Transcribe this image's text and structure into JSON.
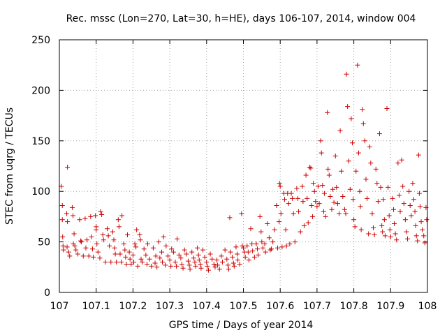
{
  "chart_data": {
    "type": "scatter",
    "title": "Rec. mssc (Lon=270, Lat=30, h=HE), days 106-107, 2014, window 004",
    "xlabel": "GPS time / Days of year 2014",
    "ylabel": "STEC from uqrg / TECUs",
    "xlim": [
      107,
      108
    ],
    "ylim": [
      0,
      250
    ],
    "x_ticks": [
      "107",
      "107.1",
      "107.2",
      "107.3",
      "107.4",
      "107.5",
      "107.6",
      "107.7",
      "107.8",
      "107.9",
      "108"
    ],
    "y_ticks": [
      "0",
      "50",
      "100",
      "150",
      "200",
      "250"
    ],
    "grid": true,
    "marker": "+",
    "color": "#cc0000",
    "points": [
      [
        107.005,
        105
      ],
      [
        107.008,
        86
      ],
      [
        107.008,
        72
      ],
      [
        107.009,
        55
      ],
      [
        107.01,
        46
      ],
      [
        107.011,
        42
      ],
      [
        107.022,
        124
      ],
      [
        107.02,
        78
      ],
      [
        107.022,
        70
      ],
      [
        107.021,
        45
      ],
      [
        107.025,
        40
      ],
      [
        107.028,
        36
      ],
      [
        107.035,
        84
      ],
      [
        107.037,
        76
      ],
      [
        107.04,
        58
      ],
      [
        107.038,
        48
      ],
      [
        107.042,
        46
      ],
      [
        107.045,
        42
      ],
      [
        107.05,
        38
      ],
      [
        107.055,
        72
      ],
      [
        107.058,
        51
      ],
      [
        107.06,
        50
      ],
      [
        107.065,
        36
      ],
      [
        107.07,
        73
      ],
      [
        107.072,
        44
      ],
      [
        107.075,
        52
      ],
      [
        107.08,
        36
      ],
      [
        107.085,
        75
      ],
      [
        107.087,
        55
      ],
      [
        107.09,
        43
      ],
      [
        107.092,
        35
      ],
      [
        107.098,
        76
      ],
      [
        107.1,
        65
      ],
      [
        107.1,
        62
      ],
      [
        107.102,
        48
      ],
      [
        107.105,
        40
      ],
      [
        107.11,
        34
      ],
      [
        107.112,
        80
      ],
      [
        107.115,
        77
      ],
      [
        107.118,
        57
      ],
      [
        107.12,
        52
      ],
      [
        107.125,
        30
      ],
      [
        107.13,
        63
      ],
      [
        107.133,
        56
      ],
      [
        107.136,
        46
      ],
      [
        107.14,
        30
      ],
      [
        107.145,
        60
      ],
      [
        107.148,
        52
      ],
      [
        107.15,
        44
      ],
      [
        107.152,
        38
      ],
      [
        107.155,
        30
      ],
      [
        107.16,
        72
      ],
      [
        107.162,
        65
      ],
      [
        107.165,
        38
      ],
      [
        107.168,
        30
      ],
      [
        107.17,
        76
      ],
      [
        107.175,
        48
      ],
      [
        107.178,
        42
      ],
      [
        107.18,
        35
      ],
      [
        107.182,
        28
      ],
      [
        107.185,
        57
      ],
      [
        107.19,
        40
      ],
      [
        107.192,
        33
      ],
      [
        107.195,
        28
      ],
      [
        107.2,
        37
      ],
      [
        107.202,
        30
      ],
      [
        107.205,
        48
      ],
      [
        107.208,
        45
      ],
      [
        107.21,
        62
      ],
      [
        107.213,
        26
      ],
      [
        107.218,
        57
      ],
      [
        107.22,
        52
      ],
      [
        107.222,
        33
      ],
      [
        107.225,
        30
      ],
      [
        107.23,
        43
      ],
      [
        107.235,
        37
      ],
      [
        107.238,
        28
      ],
      [
        107.24,
        48
      ],
      [
        107.245,
        33
      ],
      [
        107.25,
        26
      ],
      [
        107.255,
        44
      ],
      [
        107.26,
        29
      ],
      [
        107.262,
        36
      ],
      [
        107.265,
        25
      ],
      [
        107.27,
        50
      ],
      [
        107.273,
        34
      ],
      [
        107.278,
        40
      ],
      [
        107.28,
        30
      ],
      [
        107.283,
        55
      ],
      [
        107.288,
        27
      ],
      [
        107.29,
        46
      ],
      [
        107.295,
        36
      ],
      [
        107.3,
        32
      ],
      [
        107.303,
        26
      ],
      [
        107.305,
        43
      ],
      [
        107.31,
        40
      ],
      [
        107.315,
        30
      ],
      [
        107.318,
        26
      ],
      [
        107.32,
        53
      ],
      [
        107.325,
        37
      ],
      [
        107.33,
        34
      ],
      [
        107.333,
        28
      ],
      [
        107.336,
        24
      ],
      [
        107.34,
        42
      ],
      [
        107.345,
        38
      ],
      [
        107.35,
        31
      ],
      [
        107.353,
        27
      ],
      [
        107.355,
        23
      ],
      [
        107.36,
        40
      ],
      [
        107.365,
        34
      ],
      [
        107.368,
        30
      ],
      [
        107.37,
        26
      ],
      [
        107.375,
        44
      ],
      [
        107.378,
        37
      ],
      [
        107.38,
        32
      ],
      [
        107.383,
        28
      ],
      [
        107.385,
        24
      ],
      [
        107.39,
        42
      ],
      [
        107.395,
        35
      ],
      [
        107.4,
        30
      ],
      [
        107.402,
        26
      ],
      [
        107.405,
        22
      ],
      [
        107.41,
        38
      ],
      [
        107.415,
        33
      ],
      [
        107.42,
        28
      ],
      [
        107.423,
        25
      ],
      [
        107.428,
        32
      ],
      [
        107.43,
        27
      ],
      [
        107.435,
        23
      ],
      [
        107.44,
        36
      ],
      [
        107.443,
        30
      ],
      [
        107.45,
        42
      ],
      [
        107.455,
        33
      ],
      [
        107.458,
        27
      ],
      [
        107.46,
        23
      ],
      [
        107.463,
        74
      ],
      [
        107.465,
        40
      ],
      [
        107.47,
        35
      ],
      [
        107.473,
        29
      ],
      [
        107.475,
        26
      ],
      [
        107.48,
        45
      ],
      [
        107.483,
        38
      ],
      [
        107.485,
        32
      ],
      [
        107.49,
        28
      ],
      [
        107.495,
        78
      ],
      [
        107.497,
        46
      ],
      [
        107.5,
        44
      ],
      [
        107.503,
        40
      ],
      [
        107.505,
        35
      ],
      [
        107.51,
        46
      ],
      [
        107.513,
        40
      ],
      [
        107.515,
        32
      ],
      [
        107.52,
        63
      ],
      [
        107.523,
        48
      ],
      [
        107.525,
        41
      ],
      [
        107.53,
        35
      ],
      [
        107.535,
        48
      ],
      [
        107.538,
        43
      ],
      [
        107.54,
        37
      ],
      [
        107.545,
        75
      ],
      [
        107.548,
        60
      ],
      [
        107.55,
        50
      ],
      [
        107.553,
        44
      ],
      [
        107.558,
        48
      ],
      [
        107.56,
        40
      ],
      [
        107.565,
        68
      ],
      [
        107.57,
        54
      ],
      [
        107.573,
        42
      ],
      [
        107.576,
        43
      ],
      [
        107.58,
        50
      ],
      [
        107.585,
        62
      ],
      [
        107.59,
        86
      ],
      [
        107.593,
        44
      ],
      [
        107.597,
        70
      ],
      [
        107.598,
        108
      ],
      [
        107.6,
        105
      ],
      [
        107.602,
        78
      ],
      [
        107.605,
        45
      ],
      [
        107.61,
        98
      ],
      [
        107.612,
        92
      ],
      [
        107.615,
        62
      ],
      [
        107.617,
        46
      ],
      [
        107.62,
        98
      ],
      [
        107.623,
        88
      ],
      [
        107.626,
        48
      ],
      [
        107.63,
        98
      ],
      [
        107.633,
        93
      ],
      [
        107.636,
        78
      ],
      [
        107.64,
        50
      ],
      [
        107.645,
        103
      ],
      [
        107.648,
        93
      ],
      [
        107.65,
        80
      ],
      [
        107.655,
        60
      ],
      [
        107.66,
        105
      ],
      [
        107.662,
        90
      ],
      [
        107.665,
        66
      ],
      [
        107.67,
        116
      ],
      [
        107.673,
        93
      ],
      [
        107.676,
        69
      ],
      [
        107.68,
        124
      ],
      [
        107.683,
        123
      ],
      [
        107.685,
        86
      ],
      [
        107.688,
        75
      ],
      [
        107.69,
        108
      ],
      [
        107.693,
        100
      ],
      [
        107.696,
        90
      ],
      [
        107.7,
        85
      ],
      [
        107.703,
        105
      ],
      [
        107.706,
        88
      ],
      [
        107.71,
        150
      ],
      [
        107.712,
        138
      ],
      [
        107.715,
        106
      ],
      [
        107.718,
        80
      ],
      [
        107.72,
        98
      ],
      [
        107.723,
        75
      ],
      [
        107.728,
        178
      ],
      [
        107.73,
        122
      ],
      [
        107.733,
        116
      ],
      [
        107.736,
        95
      ],
      [
        107.74,
        82
      ],
      [
        107.743,
        102
      ],
      [
        107.746,
        89
      ],
      [
        107.75,
        135
      ],
      [
        107.753,
        104
      ],
      [
        107.756,
        88
      ],
      [
        107.76,
        78
      ],
      [
        107.763,
        160
      ],
      [
        107.766,
        120
      ],
      [
        107.77,
        95
      ],
      [
        107.775,
        82
      ],
      [
        107.778,
        78
      ],
      [
        107.78,
        216
      ],
      [
        107.783,
        184
      ],
      [
        107.786,
        130
      ],
      [
        107.79,
        102
      ],
      [
        107.793,
        172
      ],
      [
        107.796,
        148
      ],
      [
        107.798,
        92
      ],
      [
        107.8,
        72
      ],
      [
        107.803,
        65
      ],
      [
        107.806,
        120
      ],
      [
        107.81,
        225
      ],
      [
        107.813,
        138
      ],
      [
        107.816,
        100
      ],
      [
        107.818,
        85
      ],
      [
        107.82,
        62
      ],
      [
        107.823,
        181
      ],
      [
        107.826,
        167
      ],
      [
        107.83,
        150
      ],
      [
        107.833,
        112
      ],
      [
        107.836,
        93
      ],
      [
        107.84,
        58
      ],
      [
        107.843,
        144
      ],
      [
        107.846,
        128
      ],
      [
        107.85,
        78
      ],
      [
        107.853,
        64
      ],
      [
        107.856,
        57
      ],
      [
        107.86,
        122
      ],
      [
        107.863,
        108
      ],
      [
        107.866,
        90
      ],
      [
        107.87,
        157
      ],
      [
        107.873,
        104
      ],
      [
        107.876,
        66
      ],
      [
        107.878,
        60
      ],
      [
        107.88,
        92
      ],
      [
        107.883,
        72
      ],
      [
        107.885,
        56
      ],
      [
        107.89,
        182
      ],
      [
        107.893,
        104
      ],
      [
        107.896,
        76
      ],
      [
        107.898,
        62
      ],
      [
        107.9,
        55
      ],
      [
        107.905,
        93
      ],
      [
        107.908,
        82
      ],
      [
        107.91,
        68
      ],
      [
        107.913,
        58
      ],
      [
        107.916,
        52
      ],
      [
        107.92,
        128
      ],
      [
        107.923,
        96
      ],
      [
        107.926,
        80
      ],
      [
        107.93,
        131
      ],
      [
        107.933,
        105
      ],
      [
        107.936,
        88
      ],
      [
        107.94,
        72
      ],
      [
        107.943,
        60
      ],
      [
        107.946,
        53
      ],
      [
        107.95,
        100
      ],
      [
        107.953,
        86
      ],
      [
        107.956,
        76
      ],
      [
        107.96,
        108
      ],
      [
        107.963,
        92
      ],
      [
        107.966,
        80
      ],
      [
        107.968,
        66
      ],
      [
        107.97,
        56
      ],
      [
        107.973,
        51
      ],
      [
        107.976,
        136
      ],
      [
        107.978,
        98
      ],
      [
        107.98,
        85
      ],
      [
        107.983,
        70
      ],
      [
        107.986,
        62
      ],
      [
        107.99,
        56
      ],
      [
        107.993,
        49
      ],
      [
        107.996,
        84
      ],
      [
        107.998,
        72
      ]
    ]
  }
}
